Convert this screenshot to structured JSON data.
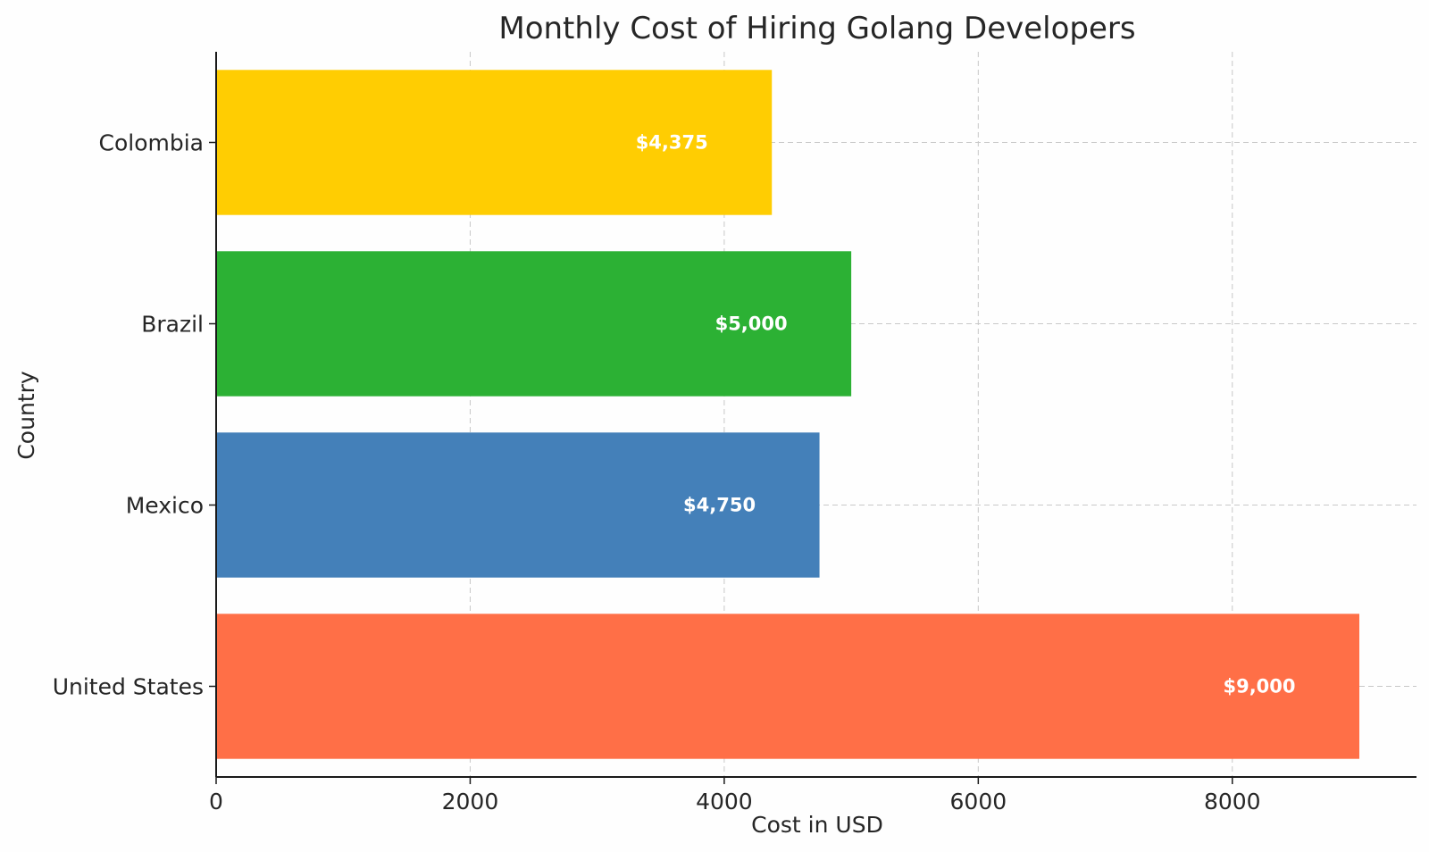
{
  "chart_data": {
    "type": "bar",
    "orientation": "horizontal",
    "title": "Monthly Cost of Hiring Golang Developers",
    "xlabel": "Cost in USD",
    "ylabel": "Country",
    "xlim": [
      0,
      9450
    ],
    "xticks": [
      0,
      2000,
      4000,
      6000,
      8000
    ],
    "grid": true,
    "categories": [
      "United States",
      "Mexico",
      "Brazil",
      "Colombia"
    ],
    "values": [
      9000,
      4750,
      5000,
      4375
    ],
    "value_labels": [
      "$9,000",
      "$4,750",
      "$5,000",
      "$4,375"
    ],
    "colors": [
      "#ff6f47",
      "#4480b9",
      "#2cb134",
      "#ffcd02"
    ]
  }
}
